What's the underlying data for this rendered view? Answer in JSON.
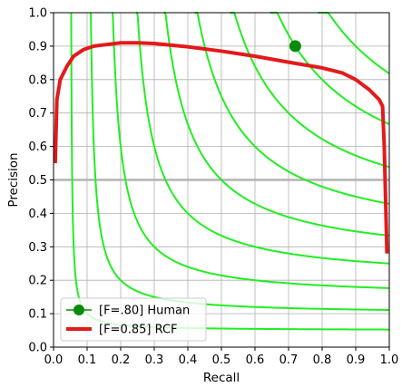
{
  "chart_data": {
    "type": "line",
    "xlabel": "Recall",
    "ylabel": "Precision",
    "xlim": [
      0.0,
      1.0
    ],
    "ylim": [
      0.0,
      1.0
    ],
    "xticks": [
      "0.0",
      "0.1",
      "0.2",
      "0.3",
      "0.4",
      "0.5",
      "0.6",
      "0.7",
      "0.8",
      "0.9",
      "1.0"
    ],
    "yticks": [
      "0.0",
      "0.1",
      "0.2",
      "0.3",
      "0.4",
      "0.5",
      "0.6",
      "0.7",
      "0.8",
      "0.9",
      "1.0"
    ],
    "grid": true,
    "legend_position": "lower-left",
    "reference_line": {
      "y": 0.5,
      "color": "#b3b3b3"
    },
    "iso_f_curves": {
      "color": "#22ee22",
      "f_values": [
        0.1,
        0.2,
        0.3,
        0.4,
        0.5,
        0.6,
        0.7,
        0.8,
        0.9
      ]
    },
    "series": [
      {
        "name": "[F=.80] Human",
        "type": "point",
        "color": "#0a8a0a",
        "points": [
          [
            0.72,
            0.9
          ]
        ]
      },
      {
        "name": "[F=0.85] RCF",
        "type": "line",
        "color": "#e31a1c",
        "points": [
          [
            0.005,
            0.55
          ],
          [
            0.01,
            0.74
          ],
          [
            0.02,
            0.8
          ],
          [
            0.04,
            0.84
          ],
          [
            0.06,
            0.87
          ],
          [
            0.09,
            0.89
          ],
          [
            0.12,
            0.9
          ],
          [
            0.16,
            0.905
          ],
          [
            0.2,
            0.91
          ],
          [
            0.25,
            0.91
          ],
          [
            0.3,
            0.908
          ],
          [
            0.4,
            0.898
          ],
          [
            0.5,
            0.885
          ],
          [
            0.6,
            0.87
          ],
          [
            0.7,
            0.852
          ],
          [
            0.8,
            0.835
          ],
          [
            0.86,
            0.82
          ],
          [
            0.9,
            0.8
          ],
          [
            0.94,
            0.77
          ],
          [
            0.97,
            0.74
          ],
          [
            0.98,
            0.72
          ],
          [
            0.985,
            0.6
          ],
          [
            0.99,
            0.4
          ],
          [
            0.993,
            0.28
          ]
        ]
      }
    ]
  }
}
